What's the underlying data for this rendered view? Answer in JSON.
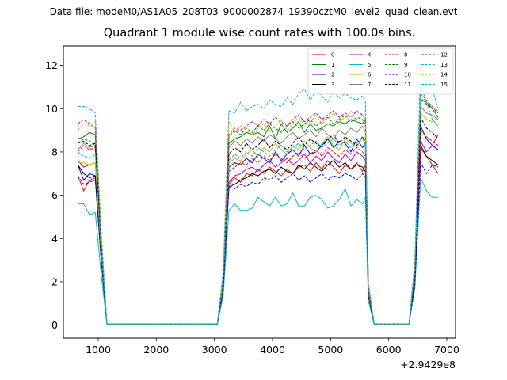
{
  "suptitle": "Data file: modeM0/AS1A05_208T03_9000002874_19390cztM0_level2_quad_clean.evt",
  "chart_data": {
    "type": "line",
    "title": "Quadrant 1 module wise count rates with 100.0s bins.",
    "xlabel": "",
    "ylabel": "",
    "x_offset_label": "+2.9429e8",
    "x_offset": 294290000,
    "xlim": [
      400,
      7150
    ],
    "ylim": [
      -0.6,
      12.9
    ],
    "x_ticks": [
      1000,
      2000,
      3000,
      4000,
      5000,
      6000,
      7000
    ],
    "y_ticks": [
      0,
      2,
      4,
      6,
      8,
      10,
      12
    ],
    "legend": {
      "placement": "top-right",
      "ncol": 4
    },
    "x": [
      650,
      750,
      850,
      950,
      1050,
      1150,
      1250,
      1350,
      1450,
      1550,
      1650,
      1750,
      1850,
      1950,
      2050,
      2150,
      2250,
      2350,
      2450,
      2550,
      2650,
      2750,
      2850,
      2950,
      3050,
      3150,
      3250,
      3350,
      3450,
      3550,
      3650,
      3750,
      3850,
      3950,
      4050,
      4150,
      4250,
      4350,
      4450,
      4550,
      4650,
      4750,
      4850,
      4950,
      5050,
      5150,
      5250,
      5350,
      5450,
      5550,
      5650,
      5750,
      5850,
      5950,
      6050,
      6150,
      6250,
      6350,
      6450,
      6550,
      6650,
      6750,
      6850
    ],
    "series": [
      {
        "name": "0",
        "color": "#ff0000",
        "dash": "solid",
        "plateaus": [
          [
            6.9,
            6.2,
            6.7,
            6.8
          ],
          [
            6.5,
            6.8,
            6.6,
            7.0,
            6.9,
            7.2,
            7.0,
            7.3,
            7.1,
            6.9,
            7.2,
            7.0,
            7.3,
            7.4,
            7.1,
            7.5,
            7.2,
            7.6,
            7.3,
            7.0,
            7.4,
            7.2,
            7.5,
            7.1,
            7.4,
            7.3,
            7.0
          ],
          [
            8.2,
            7.8,
            7.4,
            7.0
          ]
        ]
      },
      {
        "name": "1",
        "color": "#008000",
        "dash": "solid",
        "plateaus": [
          [
            8.6,
            8.7,
            8.9,
            8.8
          ],
          [
            8.4,
            8.6,
            8.7,
            8.9,
            8.8,
            8.9,
            8.7,
            9.2,
            8.6,
            9.3,
            8.9,
            9.1,
            9.4,
            8.9,
            9.3,
            9.0,
            9.1,
            9.3,
            9.2,
            9.4,
            9.3,
            9.5,
            9.4,
            9.3,
            9.5,
            9.3,
            9.0
          ],
          [
            10.4,
            10.3,
            10.0,
            9.6
          ]
        ]
      },
      {
        "name": "2",
        "color": "#0000ff",
        "dash": "solid",
        "plateaus": [
          [
            7.4,
            6.7,
            7.0,
            6.9
          ],
          [
            7.3,
            7.5,
            7.4,
            7.7,
            7.5,
            7.9,
            7.7,
            7.5,
            8.0,
            7.6,
            7.9,
            8.1,
            7.8,
            8.3,
            7.9,
            8.0,
            8.3,
            8.6,
            8.2,
            8.5,
            8.4,
            8.0,
            8.6,
            8.2,
            8.4,
            8.3,
            8.2
          ],
          [
            9.2,
            8.6,
            8.3,
            8.1
          ]
        ]
      },
      {
        "name": "3",
        "color": "#000000",
        "dash": "solid",
        "plateaus": [
          [
            7.4,
            7.0,
            6.8,
            6.9
          ],
          [
            6.4,
            6.5,
            6.7,
            6.8,
            7.0,
            6.9,
            7.1,
            7.2,
            7.0,
            7.3,
            7.1,
            7.0,
            7.4,
            7.2,
            7.5,
            7.3,
            7.1,
            7.4,
            7.6,
            7.3,
            7.5,
            7.2,
            7.4,
            7.3,
            7.1,
            7.4,
            7.2
          ],
          [
            8.3,
            7.8,
            7.6,
            7.4
          ]
        ]
      },
      {
        "name": "4",
        "color": "#bf00bf",
        "dash": "solid",
        "plateaus": [
          [
            7.6,
            7.3,
            7.4,
            7.5
          ],
          [
            6.6,
            6.9,
            7.0,
            7.2,
            7.3,
            7.1,
            7.4,
            7.6,
            7.3,
            7.5,
            7.7,
            7.4,
            7.6,
            7.9,
            7.5,
            7.8,
            7.6,
            8.0,
            7.7,
            7.5,
            7.9,
            7.6,
            8.0,
            7.8,
            7.6,
            7.9,
            7.4
          ],
          [
            8.5,
            8.0,
            8.3,
            8.8
          ]
        ]
      },
      {
        "name": "5",
        "color": "#00bfbf",
        "dash": "solid",
        "plateaus": [
          [
            5.6,
            5.6,
            5.1,
            5.2
          ],
          [
            5.3,
            5.6,
            5.3,
            5.3,
            5.4,
            5.9,
            5.7,
            5.5,
            5.9,
            5.5,
            5.6,
            6.1,
            5.5,
            5.5,
            5.9,
            6.0,
            5.8,
            5.4,
            5.5,
            5.8,
            6.3,
            5.5,
            5.8,
            5.6,
            5.9,
            5.5,
            5.6
          ],
          [
            6.8,
            6.2,
            5.9,
            5.9
          ]
        ]
      },
      {
        "name": "6",
        "color": "#bfbf00",
        "dash": "solid",
        "plateaus": [
          [
            7.5,
            7.5,
            7.4,
            7.5
          ],
          [
            7.5,
            7.7,
            7.6,
            7.9,
            8.1,
            7.8,
            8.2,
            8.0,
            8.4,
            8.1,
            7.9,
            8.3,
            8.1,
            8.5,
            8.2,
            8.0,
            8.4,
            8.7,
            8.3,
            8.1,
            8.6,
            8.4,
            8.2,
            8.7,
            8.5,
            8.3,
            8.1
          ],
          [
            9.8,
            9.5,
            9.4,
            9.6
          ]
        ]
      },
      {
        "name": "7",
        "color": "#808080",
        "dash": "solid",
        "plateaus": [
          [
            8.1,
            8.4,
            8.2,
            8.3
          ],
          [
            8.2,
            8.5,
            8.3,
            8.6,
            8.4,
            8.7,
            8.5,
            8.8,
            8.6,
            8.4,
            8.7,
            8.9,
            8.6,
            8.8,
            9.0,
            8.7,
            9.1,
            8.8,
            8.6,
            9.0,
            8.8,
            9.1,
            8.9,
            9.2,
            8.9,
            9.0,
            8.7
          ],
          [
            10.1,
            9.8,
            9.7,
            9.5
          ]
        ]
      },
      {
        "name": "8",
        "color": "#ff0000",
        "dash": "dashed",
        "plateaus": [
          [
            8.0,
            8.3,
            8.1,
            8.2
          ],
          [
            7.1,
            7.3,
            7.5,
            7.4,
            7.7,
            7.5,
            7.8,
            7.6,
            7.9,
            7.7,
            7.5,
            7.8,
            8.0,
            7.7,
            7.9,
            8.1,
            7.8,
            8.2,
            8.0,
            7.8,
            8.1,
            7.9,
            8.2,
            8.0,
            7.8,
            8.1,
            7.7
          ],
          [
            9.0,
            8.7,
            8.5,
            8.3
          ]
        ]
      },
      {
        "name": "9",
        "color": "#008000",
        "dash": "dashed",
        "plateaus": [
          [
            8.4,
            8.6,
            8.5,
            8.3
          ],
          [
            8.7,
            9.0,
            8.8,
            9.1,
            8.9,
            9.2,
            9.0,
            9.3,
            9.1,
            8.9,
            9.2,
            9.4,
            9.1,
            9.3,
            9.5,
            9.2,
            9.4,
            9.6,
            9.3,
            9.5,
            9.7,
            9.4,
            9.6,
            9.5,
            9.3,
            9.6,
            9.2
          ],
          [
            10.5,
            10.2,
            10.0,
            9.8
          ]
        ]
      },
      {
        "name": "10",
        "color": "#0000ff",
        "dash": "dashed",
        "plateaus": [
          [
            6.9,
            6.5,
            6.6,
            6.7
          ],
          [
            6.4,
            6.3,
            6.5,
            6.4,
            6.6,
            6.5,
            6.8,
            6.7,
            6.9,
            6.6,
            6.8,
            7.0,
            6.7,
            6.9,
            6.6,
            6.8,
            7.0,
            6.7,
            6.9,
            6.8,
            7.0,
            6.9,
            6.7,
            7.0,
            6.8,
            6.9,
            6.6
          ],
          [
            7.5,
            7.0,
            7.4,
            7.3
          ]
        ]
      },
      {
        "name": "11",
        "color": "#000000",
        "dash": "dashed",
        "plateaus": [
          [
            8.4,
            8.5,
            8.3,
            8.4
          ],
          [
            7.9,
            8.2,
            8.0,
            8.4,
            8.1,
            8.3,
            8.6,
            8.2,
            8.5,
            8.3,
            8.1,
            8.4,
            8.7,
            8.3,
            8.6,
            8.4,
            8.2,
            8.6,
            8.8,
            8.4,
            8.7,
            8.5,
            8.3,
            8.7,
            8.5,
            8.6,
            8.4
          ],
          [
            9.6,
            9.1,
            8.9,
            8.6
          ]
        ]
      },
      {
        "name": "12",
        "color": "#bf00bf",
        "dash": "dashed",
        "plateaus": [
          [
            9.3,
            9.5,
            9.3,
            9.1
          ],
          [
            8.8,
            9.1,
            9.0,
            9.2,
            9.4,
            9.2,
            9.5,
            9.3,
            9.6,
            9.4,
            9.2,
            9.5,
            9.7,
            9.4,
            9.6,
            9.8,
            9.5,
            9.7,
            9.9,
            9.6,
            9.8,
            9.6,
            9.9,
            9.7,
            9.5,
            9.8,
            9.4
          ],
          [
            10.7,
            10.4,
            10.1,
            9.8
          ]
        ]
      },
      {
        "name": "13",
        "color": "#00bfbf",
        "dash": "dashed",
        "plateaus": [
          [
            10.1,
            10.1,
            10.0,
            9.8
          ],
          [
            9.9,
            9.8,
            10.3,
            9.9,
            10.1,
            10.2,
            10.0,
            10.4,
            10.2,
            10.1,
            10.5,
            10.2,
            10.7,
            10.9,
            10.4,
            10.8,
            10.6,
            10.3,
            10.8,
            10.5,
            10.7,
            10.5,
            10.4,
            10.6,
            10.3,
            10.2,
            9.9
          ],
          [
            12.1,
            11.2,
            10.9,
            10.0
          ]
        ]
      },
      {
        "name": "14",
        "color": "#bfbf00",
        "dash": "dashed",
        "plateaus": [
          [
            9.0,
            9.3,
            9.2,
            9.4
          ],
          [
            9.4,
            8.9,
            9.2,
            9.0,
            8.8,
            9.1,
            9.3,
            8.9,
            9.2,
            9.5,
            9.0,
            9.3,
            9.6,
            9.2,
            9.4,
            9.7,
            9.3,
            9.5,
            9.8,
            9.4,
            9.6,
            9.9,
            9.5,
            9.7,
            9.4,
            9.6,
            9.3
          ],
          [
            10.6,
            10.3,
            10.1,
            9.9
          ]
        ]
      },
      {
        "name": "15",
        "color": "#00bfbf",
        "dash": "dashed",
        "plateaus": [
          [
            8.0,
            7.8,
            7.7,
            7.9
          ],
          [
            7.6,
            7.9,
            7.7,
            8.0,
            7.8,
            8.2,
            8.0,
            7.8,
            8.1,
            8.3,
            8.0,
            8.2,
            8.4,
            8.1,
            8.3,
            8.5,
            8.2,
            8.4,
            8.6,
            8.3,
            8.5,
            8.2,
            8.4,
            8.6,
            8.3,
            8.5,
            8.2
          ],
          [
            11.1,
            10.3,
            9.5,
            9.2
          ]
        ]
      }
    ]
  }
}
